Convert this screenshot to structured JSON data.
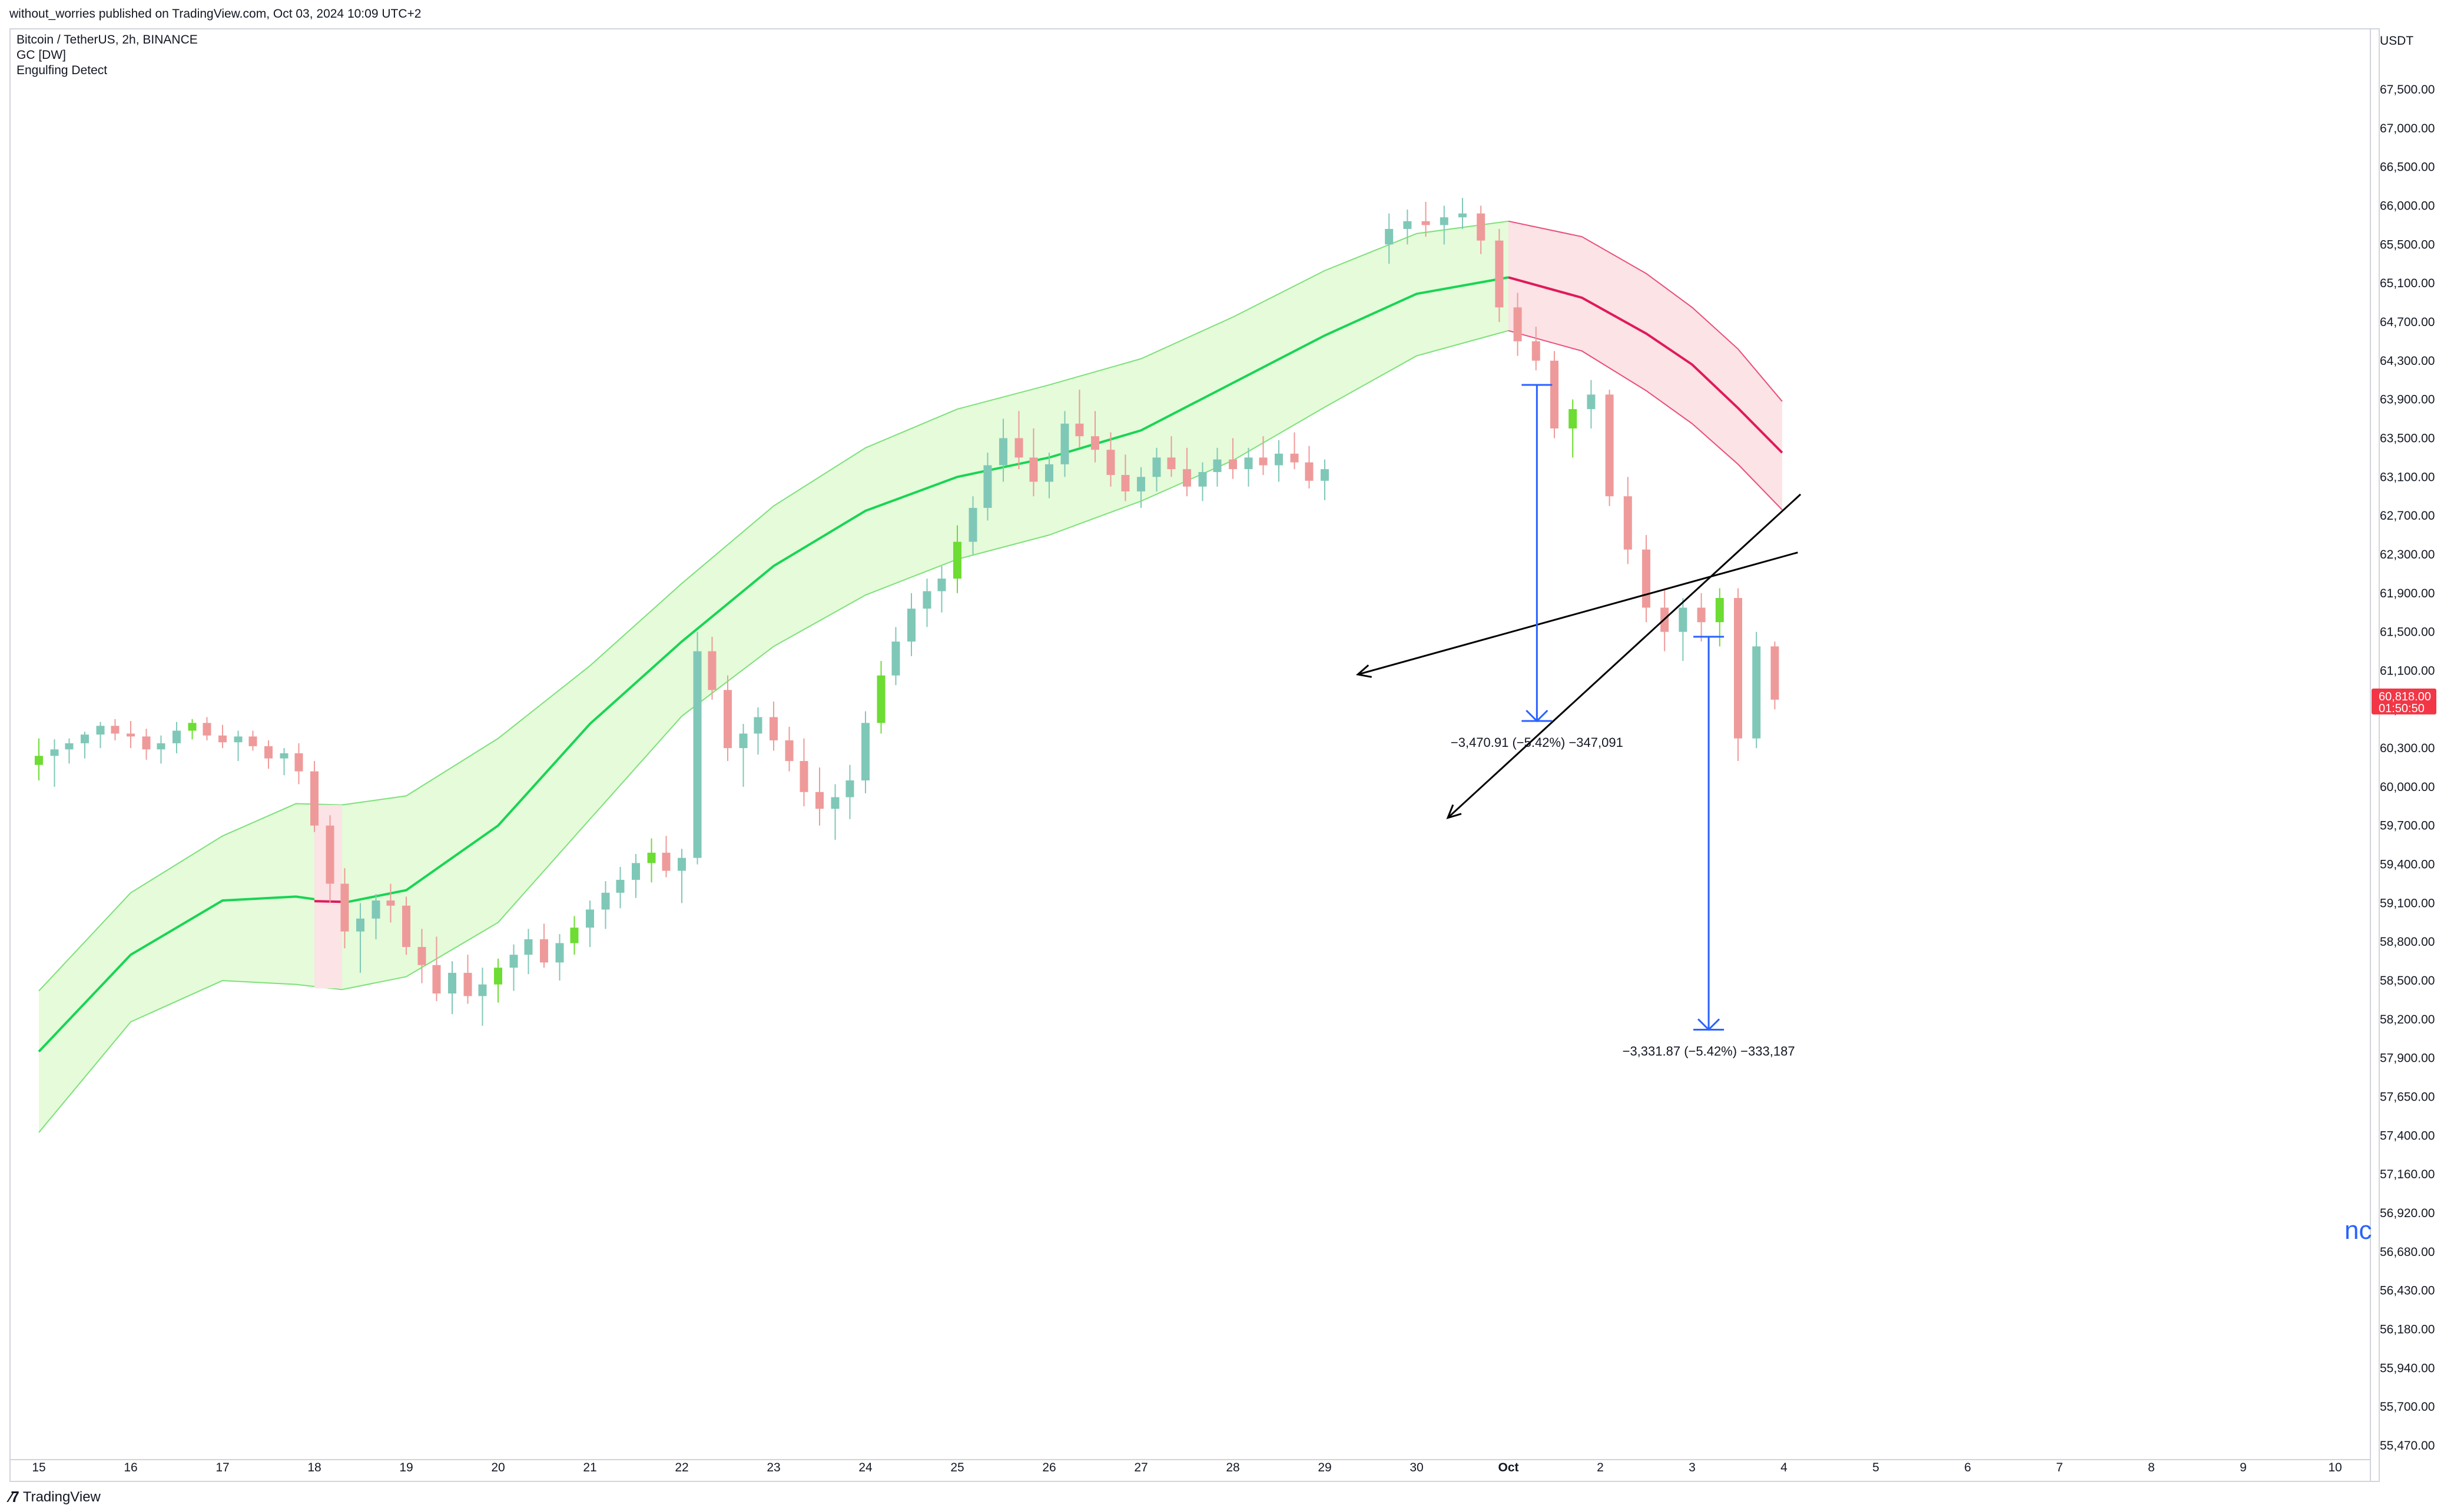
{
  "header": {
    "publisher": "without_worries published on TradingView.com, Oct 03, 2024 10:09 UTC+2",
    "symbol": "Bitcoin / TetherUS, 2h, BINANCE",
    "indicator_1": "GC [DW]",
    "indicator_2": "Engulfing Detect"
  },
  "footer": {
    "brand": "TradingView",
    "logo_icon": "tradingview-logo-icon"
  },
  "side_mark": "nc",
  "colors": {
    "up": "#6ddc33",
    "up_muted": "#7fc8b8",
    "down": "#ef9a9a",
    "down_muted": "#f4b3b3",
    "band_fill": "#e5fbd9",
    "band_edge": "#7ce17a",
    "midline": "#19d455",
    "band_fill_down": "#fbe3e6",
    "midline_down": "#e0195a",
    "band_edge_down": "#ea4d7a",
    "measure": "#2962ff",
    "trendline": "#000000",
    "price_badge": "#f23645"
  },
  "chart_data": {
    "type": "candlestick",
    "quote_unit": "USDT",
    "y_ticks": [
      "67,500.00",
      "67,000.00",
      "66,500.00",
      "66,000.00",
      "65,500.00",
      "65,100.00",
      "64,700.00",
      "64,300.00",
      "63,900.00",
      "63,500.00",
      "63,100.00",
      "62,700.00",
      "62,300.00",
      "61,900.00",
      "61,500.00",
      "61,100.00",
      "60,700.00",
      "60,300.00",
      "60,000.00",
      "59,700.00",
      "59,400.00",
      "59,100.00",
      "58,800.00",
      "58,500.00",
      "58,200.00",
      "57,900.00",
      "57,650.00",
      "57,400.00",
      "57,160.00",
      "56,920.00",
      "56,680.00",
      "56,430.00",
      "56,180.00",
      "55,940.00",
      "55,700.00",
      "55,470.00"
    ],
    "x_ticks": [
      "15",
      "16",
      "17",
      "18",
      "19",
      "20",
      "21",
      "22",
      "23",
      "24",
      "25",
      "26",
      "27",
      "28",
      "29",
      "30",
      "Oct",
      "2",
      "3",
      "4",
      "5",
      "6",
      "7",
      "8",
      "9",
      "10"
    ],
    "last_price": "60,818.00",
    "countdown": "01:50:50",
    "measures": [
      {
        "label": "−3,470.91 (−5.42%) −347,091",
        "from_day": 16.31,
        "to_day": 16.31,
        "from_price": 64050,
        "to_price": 60580
      },
      {
        "label": "−3,331.87 (−5.42%) −333,187",
        "from_day": 18.18,
        "to_day": 18.18,
        "from_price": 61450,
        "to_price": 58120
      }
    ],
    "trendlines": [
      {
        "from_day": 19.15,
        "from_price": 62320,
        "to_day": 14.36,
        "to_price": 61060
      },
      {
        "from_day": 19.18,
        "from_price": 62920,
        "to_day": 15.34,
        "to_price": 59760
      }
    ],
    "band": [
      [
        0.0,
        58420,
        57950,
        57420
      ],
      [
        1.0,
        59180,
        58700,
        58180
      ],
      [
        2.0,
        59620,
        59120,
        58500
      ],
      [
        2.8,
        59870,
        59150,
        58470
      ],
      [
        3.3,
        59860,
        59100,
        58430
      ],
      [
        4.0,
        59930,
        59200,
        58530
      ],
      [
        5.0,
        60400,
        59700,
        58950
      ],
      [
        6.0,
        61150,
        60550,
        59750
      ],
      [
        7.0,
        62000,
        61400,
        60630
      ],
      [
        8.0,
        62800,
        62180,
        61350
      ],
      [
        9.0,
        63400,
        62750,
        61880
      ],
      [
        10.0,
        63800,
        63100,
        62250
      ],
      [
        11.0,
        64050,
        63300,
        62500
      ],
      [
        12.0,
        64320,
        63580,
        62850
      ],
      [
        13.0,
        64750,
        64070,
        63270
      ],
      [
        14.0,
        65230,
        64560,
        63820
      ],
      [
        15.0,
        65640,
        64990,
        64350
      ],
      [
        16.0,
        65800,
        65160,
        64610
      ]
    ],
    "band_down": [
      [
        16.0,
        65800,
        65160,
        64610
      ],
      [
        16.8,
        65600,
        64950,
        64400
      ],
      [
        17.5,
        65200,
        64580,
        63990
      ],
      [
        18.0,
        64850,
        64260,
        63650
      ],
      [
        18.5,
        64420,
        63810,
        63230
      ],
      [
        18.98,
        63880,
        63350,
        62760
      ]
    ],
    "bear_band_segment": {
      "from_day": 3.0,
      "to_day": 3.3
    },
    "candles_sample_note": "OHLC approximated",
    "candles": [
      [
        0.0,
        60170,
        60400,
        60050,
        60240
      ],
      [
        0.17,
        60240,
        60390,
        60000,
        60290
      ],
      [
        0.33,
        60290,
        60400,
        60180,
        60350
      ],
      [
        0.5,
        60350,
        60470,
        60220,
        60440
      ],
      [
        0.67,
        60440,
        60570,
        60300,
        60530
      ],
      [
        0.83,
        60530,
        60600,
        60380,
        60450
      ],
      [
        1.0,
        60450,
        60580,
        60300,
        60420
      ],
      [
        1.17,
        60420,
        60500,
        60210,
        60290
      ],
      [
        1.33,
        60290,
        60430,
        60180,
        60350
      ],
      [
        1.5,
        60350,
        60570,
        60260,
        60480
      ],
      [
        1.67,
        60480,
        60600,
        60390,
        60560
      ],
      [
        1.83,
        60560,
        60620,
        60380,
        60430
      ],
      [
        2.0,
        60430,
        60540,
        60300,
        60360
      ],
      [
        2.17,
        60360,
        60480,
        60200,
        60420
      ],
      [
        2.33,
        60420,
        60480,
        60280,
        60320
      ],
      [
        2.5,
        60320,
        60380,
        60140,
        60220
      ],
      [
        2.67,
        60220,
        60300,
        60090,
        60260
      ],
      [
        2.83,
        60260,
        60350,
        60020,
        60120
      ],
      [
        3.0,
        60120,
        60200,
        59650,
        59700
      ],
      [
        3.17,
        59700,
        59780,
        59100,
        59250
      ],
      [
        3.33,
        59250,
        59370,
        58750,
        58880
      ],
      [
        3.5,
        58880,
        59100,
        58560,
        58980
      ],
      [
        3.67,
        58980,
        59170,
        58820,
        59120
      ],
      [
        3.83,
        59120,
        59250,
        58950,
        59080
      ],
      [
        4.0,
        59080,
        59150,
        58700,
        58760
      ],
      [
        4.17,
        58760,
        58900,
        58480,
        58620
      ],
      [
        4.33,
        58620,
        58840,
        58340,
        58400
      ],
      [
        4.5,
        58400,
        58650,
        58240,
        58560
      ],
      [
        4.67,
        58560,
        58700,
        58320,
        58380
      ],
      [
        4.83,
        58380,
        58600,
        58150,
        58470
      ],
      [
        5.0,
        58470,
        58670,
        58330,
        58600
      ],
      [
        5.17,
        58600,
        58780,
        58420,
        58700
      ],
      [
        5.33,
        58700,
        58900,
        58550,
        58820
      ],
      [
        5.5,
        58820,
        58940,
        58600,
        58640
      ],
      [
        5.67,
        58640,
        58860,
        58500,
        58790
      ],
      [
        5.83,
        58790,
        59000,
        58700,
        58910
      ],
      [
        6.0,
        58910,
        59120,
        58760,
        59050
      ],
      [
        6.17,
        59050,
        59270,
        58900,
        59180
      ],
      [
        6.33,
        59180,
        59380,
        59060,
        59280
      ],
      [
        6.5,
        59280,
        59480,
        59140,
        59410
      ],
      [
        6.67,
        59410,
        59600,
        59260,
        59490
      ],
      [
        6.83,
        59490,
        59620,
        59300,
        59350
      ],
      [
        7.0,
        59350,
        59520,
        59100,
        59450
      ],
      [
        7.17,
        59450,
        61500,
        59400,
        61300
      ],
      [
        7.33,
        61300,
        61450,
        60800,
        60900
      ],
      [
        7.5,
        60900,
        61050,
        60200,
        60300
      ],
      [
        7.67,
        60300,
        60550,
        60000,
        60450
      ],
      [
        7.83,
        60450,
        60720,
        60250,
        60620
      ],
      [
        8.0,
        60620,
        60780,
        60280,
        60380
      ],
      [
        8.17,
        60380,
        60520,
        60120,
        60200
      ],
      [
        8.33,
        60200,
        60400,
        59850,
        59960
      ],
      [
        8.5,
        59960,
        60150,
        59700,
        59830
      ],
      [
        8.67,
        59830,
        60020,
        59590,
        59920
      ],
      [
        8.83,
        59920,
        60170,
        59750,
        60050
      ],
      [
        9.0,
        60050,
        60680,
        59950,
        60560
      ],
      [
        9.17,
        60560,
        61200,
        60450,
        61050
      ],
      [
        9.33,
        61050,
        61550,
        60950,
        61400
      ],
      [
        9.5,
        61400,
        61900,
        61250,
        61740
      ],
      [
        9.67,
        61740,
        62050,
        61550,
        61920
      ],
      [
        9.83,
        61920,
        62180,
        61700,
        62050
      ],
      [
        10.0,
        62050,
        62600,
        61900,
        62430
      ],
      [
        10.17,
        62430,
        62900,
        62300,
        62780
      ],
      [
        10.33,
        62780,
        63350,
        62650,
        63220
      ],
      [
        10.5,
        63220,
        63700,
        63050,
        63500
      ],
      [
        10.67,
        63500,
        63780,
        63180,
        63300
      ],
      [
        10.83,
        63300,
        63600,
        62900,
        63050
      ],
      [
        11.0,
        63050,
        63350,
        62880,
        63230
      ],
      [
        11.17,
        63230,
        63780,
        63100,
        63650
      ],
      [
        11.33,
        63650,
        64000,
        63400,
        63520
      ],
      [
        11.5,
        63520,
        63780,
        63250,
        63380
      ],
      [
        11.67,
        63380,
        63560,
        63000,
        63120
      ],
      [
        11.83,
        63120,
        63330,
        62850,
        62950
      ],
      [
        12.0,
        62950,
        63200,
        62780,
        63100
      ],
      [
        12.17,
        63100,
        63400,
        62950,
        63300
      ],
      [
        12.33,
        63300,
        63520,
        63100,
        63180
      ],
      [
        12.5,
        63180,
        63400,
        62900,
        63000
      ],
      [
        12.67,
        63000,
        63250,
        62850,
        63150
      ],
      [
        12.83,
        63150,
        63400,
        63000,
        63280
      ],
      [
        13.0,
        63280,
        63500,
        63080,
        63180
      ],
      [
        13.17,
        63180,
        63400,
        63000,
        63300
      ],
      [
        13.33,
        63300,
        63520,
        63120,
        63220
      ],
      [
        13.5,
        63220,
        63480,
        63050,
        63340
      ],
      [
        13.67,
        63340,
        63560,
        63180,
        63250
      ],
      [
        13.83,
        63250,
        63420,
        62980,
        63060
      ],
      [
        14.0,
        63060,
        63280,
        62860,
        63180
      ],
      [
        14.17,
        63180,
        63420,
        63000,
        63300
      ],
      [
        14.33,
        63300,
        63550,
        63080,
        63150
      ],
      [
        14.5,
        63150,
        63380,
        62900,
        63000
      ],
      [
        14.67,
        63000,
        63200,
        62750,
        62830
      ],
      [
        14.83,
        62830,
        63100,
        62600,
        62980
      ],
      [
        15.0,
        62980,
        63350,
        62850,
        63260
      ],
      [
        15.17,
        63260,
        63600,
        63100,
        63480
      ],
      [
        15.33,
        63480,
        63820,
        63300,
        63700
      ],
      [
        15.5,
        63700,
        64500,
        63600,
        64250
      ],
      [
        15.67,
        64250,
        64450,
        63600,
        63700
      ],
      [
        15.83,
        63700,
        63920,
        63400,
        63550
      ]
    ],
    "candles_late": [
      [
        0.0,
        63550,
        63700,
        63280,
        63420
      ],
      [
        0.17,
        63420,
        63620,
        63200,
        63500
      ],
      [
        0.33,
        63500,
        63720,
        63300,
        63380
      ],
      [
        0.5,
        63380,
        63580,
        63150,
        63230
      ],
      [
        0.67,
        63230,
        63500,
        63050,
        63360
      ],
      [
        0.83,
        63360,
        63600,
        63200,
        63480
      ],
      [
        1.0,
        63480,
        63900,
        63350,
        63800
      ],
      [
        1.17,
        63800,
        64200,
        63650,
        64100
      ],
      [
        1.33,
        64100,
        64450,
        63950,
        64300
      ],
      [
        1.5,
        64300,
        64600,
        64000,
        64150
      ],
      [
        1.67,
        64150,
        64350,
        63800,
        63900
      ],
      [
        1.83,
        63900,
        64050,
        63500,
        63640
      ]
    ]
  }
}
